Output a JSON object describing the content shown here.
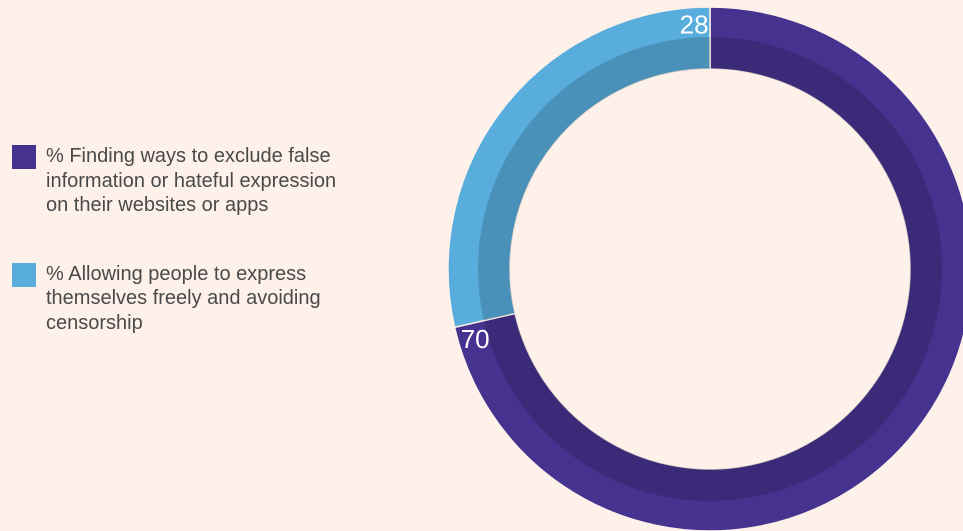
{
  "chart_data": {
    "type": "pie",
    "donut": true,
    "categories": [
      "% Finding ways to exclude false information or hateful expression on their websites or apps",
      "% Allowing people to express themselves freely and avoiding censorship"
    ],
    "values": [
      70,
      28
    ],
    "data_labels": [
      "70",
      "28"
    ],
    "colors": [
      "#46338f",
      "#58addd"
    ],
    "legend": "left",
    "start": "top",
    "direction": "clockwise"
  }
}
